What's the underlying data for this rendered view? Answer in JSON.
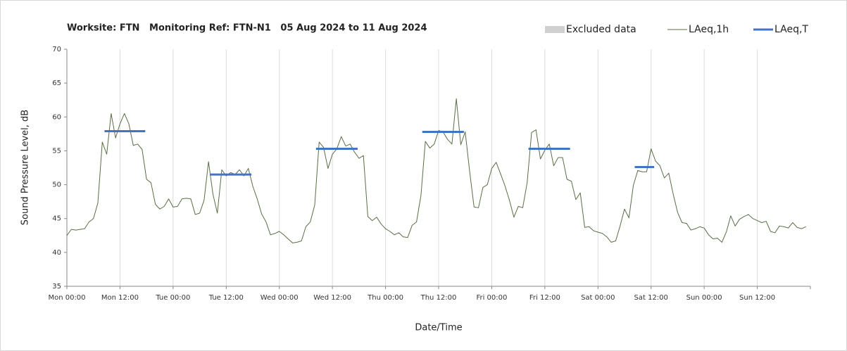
{
  "chart_data": {
    "type": "line",
    "title": "Worksite: FTN   Monitoring Ref: FTN-N1   05 Aug 2024 to 11 Aug 2024",
    "xlabel": "Date/Time",
    "ylabel": "Sound Pressure Level, dB",
    "xlim": [
      0,
      168
    ],
    "ylim": [
      35,
      70
    ],
    "yticks": [
      35,
      40,
      45,
      50,
      55,
      60,
      65,
      70
    ],
    "xticks": [
      {
        "value": 0,
        "label": "Mon 00:00"
      },
      {
        "value": 12,
        "label": "Mon 12:00"
      },
      {
        "value": 24,
        "label": "Tue 00:00"
      },
      {
        "value": 36,
        "label": "Tue 12:00"
      },
      {
        "value": 48,
        "label": "Wed 00:00"
      },
      {
        "value": 60,
        "label": "Wed 12:00"
      },
      {
        "value": 72,
        "label": "Thu 00:00"
      },
      {
        "value": 84,
        "label": "Thu 12:00"
      },
      {
        "value": 96,
        "label": "Fri 00:00"
      },
      {
        "value": 108,
        "label": "Fri 12:00"
      },
      {
        "value": 120,
        "label": "Sat 00:00"
      },
      {
        "value": 132,
        "label": "Sat 12:00"
      },
      {
        "value": 144,
        "label": "Sun 00:00"
      },
      {
        "value": 156,
        "label": "Sun 12:00"
      }
    ],
    "grid": true,
    "legend": "top-right",
    "series": [
      {
        "name": "Excluded data",
        "color": "#d0d0d0",
        "style": "area",
        "x": [],
        "values": []
      },
      {
        "name": "LAeq,1h",
        "color": "#5a6e46",
        "style": "thin",
        "x": [
          0,
          1,
          2,
          3,
          4,
          5,
          6,
          7,
          8,
          9,
          10,
          11,
          12,
          13,
          14,
          15,
          16,
          17,
          18,
          19,
          20,
          21,
          22,
          23,
          24,
          25,
          26,
          27,
          28,
          29,
          30,
          31,
          32,
          33,
          34,
          35,
          36,
          37,
          38,
          39,
          40,
          41,
          42,
          43,
          44,
          45,
          46,
          47,
          48,
          49,
          50,
          51,
          52,
          53,
          54,
          55,
          56,
          57,
          58,
          59,
          60,
          61,
          62,
          63,
          64,
          65,
          66,
          67,
          68,
          69,
          70,
          71,
          72,
          73,
          74,
          75,
          76,
          77,
          78,
          79,
          80,
          81,
          82,
          83,
          84,
          85,
          86,
          87,
          88,
          89,
          90,
          91,
          92,
          93,
          94,
          95,
          96,
          97,
          98,
          99,
          100,
          101,
          102,
          103,
          104,
          105,
          106,
          107,
          108,
          109,
          110,
          111,
          112,
          113,
          114,
          115,
          116,
          117,
          118,
          119,
          120,
          121,
          122,
          123,
          124,
          125,
          126,
          127,
          128,
          129,
          130,
          131,
          132,
          133,
          134,
          135,
          136,
          137,
          138,
          139,
          140,
          141,
          142,
          143,
          144,
          145,
          146,
          147,
          148,
          149,
          150,
          151,
          152,
          153,
          154,
          155,
          156,
          157,
          158,
          159,
          160,
          161,
          162,
          163,
          164,
          165,
          166,
          167
        ],
        "values": [
          42.5,
          43.4,
          43.3,
          43.4,
          43.5,
          44.5,
          45,
          47.3,
          56.3,
          54.5,
          60.5,
          56.9,
          59,
          60.5,
          59,
          55.8,
          56,
          55.2,
          50.8,
          50.3,
          47.1,
          46.4,
          46.8,
          47.9,
          46.7,
          46.8,
          47.9,
          48,
          47.9,
          45.6,
          45.8,
          47.7,
          53.4,
          48.6,
          45.8,
          52.2,
          51.3,
          51.8,
          51.5,
          52.2,
          51.3,
          52.4,
          49.8,
          47.9,
          45.7,
          44.5,
          42.6,
          42.8,
          43.1,
          42.6,
          42,
          41.4,
          41.5,
          41.7,
          43.8,
          44.5,
          47,
          56.3,
          55.5,
          52.4,
          54.5,
          55.3,
          57.1,
          55.7,
          56,
          54.8,
          53.9,
          54.3,
          45.3,
          44.7,
          45.2,
          44.2,
          43.5,
          43.1,
          42.6,
          42.9,
          42.3,
          42.2,
          44,
          44.5,
          48.4,
          56.4,
          55.4,
          56,
          58,
          57.8,
          56.7,
          56,
          62.7,
          55.9,
          57.8,
          52,
          46.7,
          46.6,
          49.6,
          50,
          52.4,
          53.3,
          51.6,
          49.8,
          47.7,
          45.2,
          46.8,
          46.6,
          50.3,
          57.7,
          58.1,
          53.8,
          55.1,
          56,
          52.8,
          54,
          54,
          50.8,
          50.5,
          47.8,
          48.8,
          43.7,
          43.8,
          43.2,
          43,
          42.8,
          42.3,
          41.5,
          41.7,
          43.9,
          46.4,
          45.1,
          49.9,
          52.1,
          51.9,
          51.9,
          55.3,
          53.5,
          52.8,
          51,
          51.7,
          48.6,
          45.9,
          44.4,
          44.3,
          43.3,
          43.5,
          43.8,
          43.6,
          42.6,
          42,
          42.1,
          41.5,
          43,
          45.4,
          43.9,
          44.9,
          45.3,
          45.6,
          45,
          44.7,
          44.4,
          44.6,
          43.1,
          42.9,
          43.9,
          43.8,
          43.6,
          44.4,
          43.7,
          43.5,
          43.8
        ]
      },
      {
        "name": "LAeq,T",
        "color": "#4472c4",
        "style": "thick",
        "x": [
          8.5,
          17.7,
          17.7,
          32.3,
          41.7,
          41.7,
          56.3,
          65.7,
          65.7,
          80.3,
          89.7,
          89.7,
          104.3,
          113.7,
          113.7,
          128.3,
          132.7
        ],
        "values": [
          57.9,
          57.9,
          null,
          51.5,
          51.5,
          null,
          55.3,
          55.3,
          null,
          57.8,
          57.8,
          null,
          55.3,
          55.3,
          null,
          52.6,
          52.6
        ]
      }
    ]
  }
}
